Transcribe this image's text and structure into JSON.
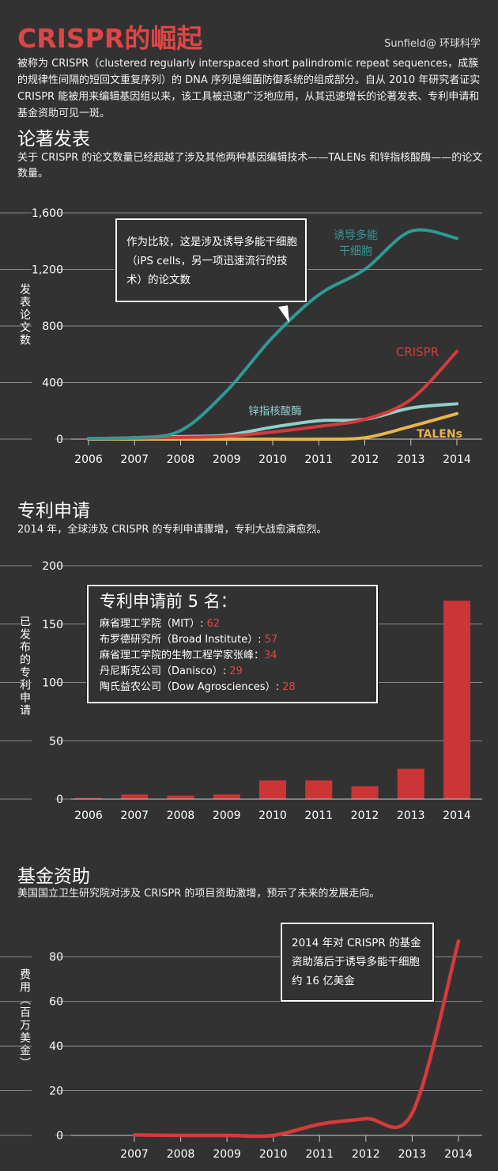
{
  "header": {
    "title": "CRISPR的崛起",
    "credit": "Sunfield@ 环球科学",
    "intro": "被称为 CRISPR（clustered regularly interspaced short palindromic repeat sequences，成簇的规律性间隔的短回文重复序列）的 DNA 序列是细菌防御系统的组成部分。自从 2010 年研究者证实 CRISPR 能被用来编辑基因组以来，该工具被迅速广泛地应用，从其迅速增长的论著发表、专利申请和基金资助可见一斑。"
  },
  "colors": {
    "background": "#333233",
    "title_red": "#e04545",
    "crispr": "#d63a3a",
    "ips": "#2f9a95",
    "zinc": "#8fd1cb",
    "talens": "#e8b54a",
    "bar": "#cc3535"
  },
  "sections": {
    "papers": {
      "title": "论著发表",
      "desc": "关于 CRISPR 的论文数量已经超越了涉及其他两种基因编辑技术——TALENs 和锌指核酸酶——的论文数量。",
      "callout": "作为比较，这是涉及诱导多能干细胞（iPS cells，另一项迅速流行的技术）的论文数"
    },
    "patents": {
      "title": "专利申请",
      "desc": "2014 年，全球涉及 CRISPR 的专利申请骤增，专利大战愈演愈烈。",
      "box_title": "专利申请前 5 名：",
      "top5": [
        {
          "name": "麻省理工学院（MIT）: ",
          "value": "62"
        },
        {
          "name": "布罗德研究所（Broad Institute）: ",
          "value": "57"
        },
        {
          "name": "麻省理工学院的生物工程学家张峰：",
          "value": "34"
        },
        {
          "name": "丹尼斯克公司（Danisco）: ",
          "value": "29"
        },
        {
          "name": "陶氏益农公司（Dow Agrosciences）: ",
          "value": "28"
        }
      ]
    },
    "funding": {
      "title": "基金资助",
      "desc": "美国国立卫生研究院对涉及 CRISPR 的项目资助激增，预示了未来的发展走向。",
      "callout": "2014 年对 CRISPR 的基金资助落后于诱导多能干细胞约 16 亿美金"
    }
  },
  "chart_data": [
    {
      "type": "line",
      "ylabel": "发表论文数",
      "x": [
        2006,
        2007,
        2008,
        2009,
        2010,
        2011,
        2012,
        2013,
        2014
      ],
      "xticks": [
        "2006",
        "2007",
        "2008",
        "2009",
        "2010",
        "2011",
        "2012",
        "2013",
        "2014"
      ],
      "yticks": [
        "0",
        "400",
        "800",
        "1,200",
        "1,600"
      ],
      "ylim": [
        0,
        1600
      ],
      "series": [
        {
          "name": "诱导多能干细胞",
          "key": "ips",
          "values": [
            5,
            10,
            60,
            340,
            720,
            1020,
            1200,
            1470,
            1420
          ]
        },
        {
          "name": "CRISPR",
          "key": "crispr",
          "values": [
            5,
            8,
            12,
            20,
            50,
            90,
            140,
            280,
            620
          ]
        },
        {
          "name": "锌指核酸酶",
          "key": "zinc",
          "values": [
            3,
            10,
            18,
            28,
            85,
            130,
            140,
            220,
            250
          ]
        },
        {
          "name": "TALENs",
          "key": "talens",
          "values": [
            0,
            0,
            0,
            0,
            0,
            0,
            10,
            90,
            180
          ]
        }
      ],
      "labels": {
        "ips": "诱导多能\n干细胞",
        "crispr": "CRISPR",
        "zinc": "锌指核酸酶",
        "talens": "TALENs"
      }
    },
    {
      "type": "bar",
      "ylabel": "已发布的专利申请",
      "categories": [
        "2006",
        "2007",
        "2008",
        "2009",
        "2010",
        "2011",
        "2012",
        "2013",
        "2014"
      ],
      "values": [
        1,
        4,
        3,
        4,
        16,
        16,
        11,
        26,
        170
      ],
      "yticks": [
        "0",
        "50",
        "100",
        "150",
        "200"
      ],
      "ylim": [
        0,
        200
      ]
    },
    {
      "type": "line",
      "ylabel": "费用（百万美金）",
      "x": [
        2007,
        2008,
        2009,
        2010,
        2011,
        2012,
        2013,
        2014
      ],
      "xticks": [
        "2007",
        "2008",
        "2009",
        "2010",
        "2011",
        "2012",
        "2013",
        "2014"
      ],
      "yticks": [
        "0",
        "20",
        "40",
        "60",
        "80"
      ],
      "ylim": [
        0,
        90
      ],
      "series": [
        {
          "key": "crispr",
          "values": [
            0.2,
            0,
            0,
            0,
            5,
            7.5,
            10,
            87
          ]
        }
      ]
    }
  ]
}
